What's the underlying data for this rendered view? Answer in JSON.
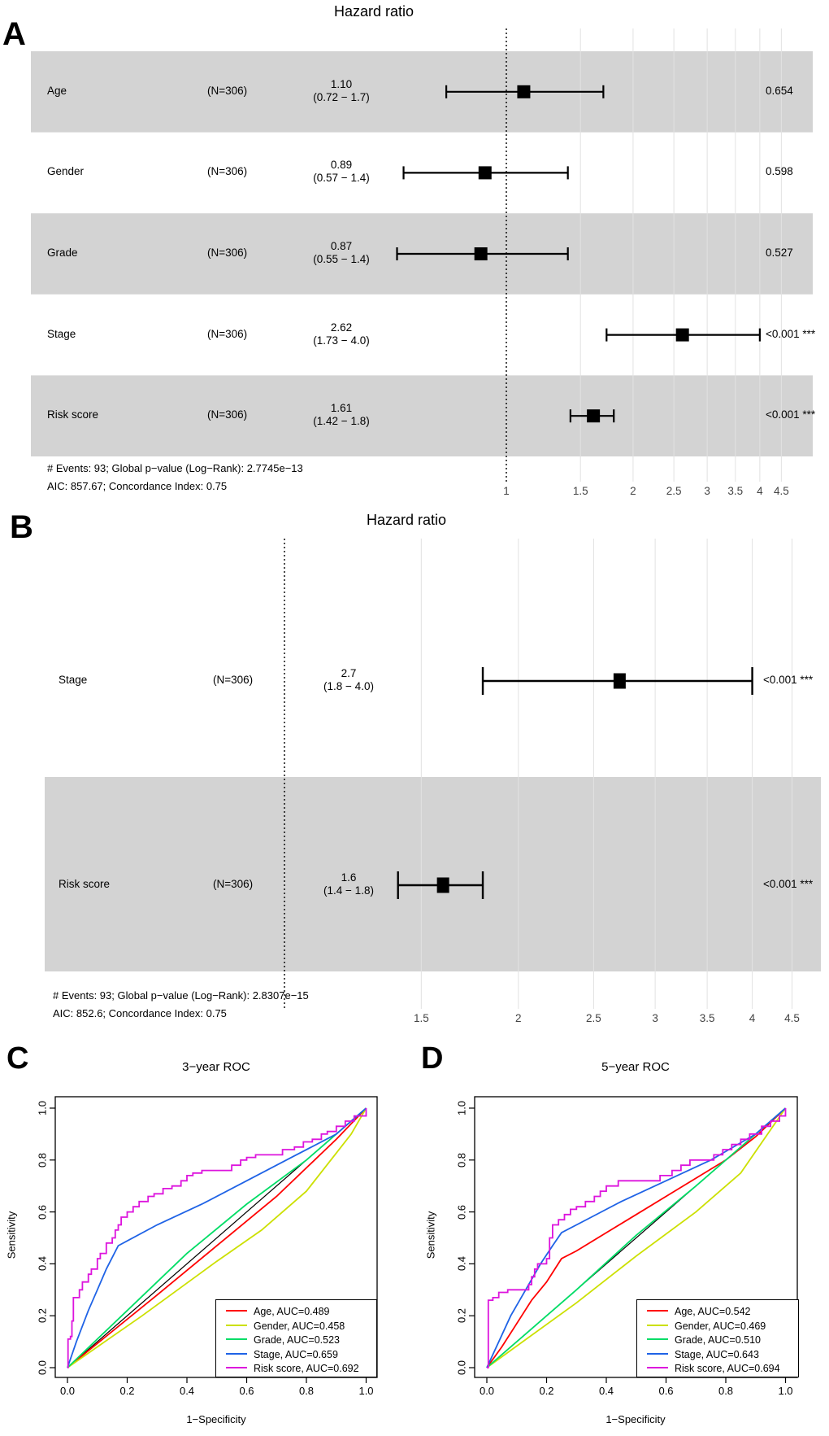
{
  "colors": {
    "band": "#D3D3D3",
    "grid": "#E2E2E2",
    "marker": "#000000",
    "reference_line": "#000000",
    "age": "#FF0000",
    "gender": "#CCE000",
    "grade": "#00DD66",
    "stage": "#1F63E6",
    "risk_score": "#DD14DD"
  },
  "chart_data": [
    {
      "id": "forest-a",
      "type": "forest",
      "panel_label": "A",
      "title": "Hazard ratio",
      "rows": [
        {
          "label": "Age",
          "n": "(N=306)",
          "estimate_label": "1.10",
          "ci_label": "(0.72 − 1.7)",
          "hr": 1.1,
          "lo": 0.72,
          "hi": 1.7,
          "p": "0.654",
          "shaded": true
        },
        {
          "label": "Gender",
          "n": "(N=306)",
          "estimate_label": "0.89",
          "ci_label": "(0.57 − 1.4)",
          "hr": 0.89,
          "lo": 0.57,
          "hi": 1.4,
          "p": "0.598",
          "shaded": false
        },
        {
          "label": "Grade",
          "n": "(N=306)",
          "estimate_label": "0.87",
          "ci_label": "(0.55 − 1.4)",
          "hr": 0.87,
          "lo": 0.55,
          "hi": 1.4,
          "p": "0.527",
          "shaded": true
        },
        {
          "label": "Stage",
          "n": "(N=306)",
          "estimate_label": "2.62",
          "ci_label": "(1.73 − 4.0)",
          "hr": 2.62,
          "lo": 1.73,
          "hi": 4.0,
          "p": "<0.001 ***",
          "shaded": false
        },
        {
          "label": "Risk score",
          "n": "(N=306)",
          "estimate_label": "1.61",
          "ci_label": "(1.42 − 1.8)",
          "hr": 1.61,
          "lo": 1.42,
          "hi": 1.8,
          "p": "<0.001 ***",
          "shaded": true
        }
      ],
      "footer_line1": "# Events: 93; Global p−value (Log−Rank): 2.7745e−13",
      "footer_line2": "AIC: 857.67; Concordance Index: 0.75",
      "axis": {
        "scale": "log",
        "reference": 1,
        "xlim": [
          0.55,
          4.9
        ],
        "ticks": [
          1,
          1.5,
          2,
          2.5,
          3,
          3.5,
          4,
          4.5
        ],
        "tick_labels": [
          "1",
          "1.5",
          "2",
          "2.5",
          "3",
          "3.5",
          "4",
          "4.5"
        ]
      }
    },
    {
      "id": "forest-b",
      "type": "forest",
      "panel_label": "B",
      "title": "Hazard ratio",
      "rows": [
        {
          "label": "Stage",
          "n": "(N=306)",
          "estimate_label": "2.7",
          "ci_label": "(1.8 − 4.0)",
          "hr": 2.7,
          "lo": 1.8,
          "hi": 4.0,
          "p": "<0.001 ***",
          "shaded": false
        },
        {
          "label": "Risk score",
          "n": "(N=306)",
          "estimate_label": "1.6",
          "ci_label": "(1.4 − 1.8)",
          "hr": 1.6,
          "lo": 1.4,
          "hi": 1.8,
          "p": "<0.001 ***",
          "shaded": true
        }
      ],
      "footer_line1": "# Events: 93; Global p−value (Log−Rank): 2.8307e−15",
      "footer_line2": "AIC: 852.6; Concordance Index: 0.75",
      "axis": {
        "scale": "log",
        "reference": 1,
        "xlim": [
          1.0,
          4.9
        ],
        "ticks": [
          1.5,
          2,
          2.5,
          3,
          3.5,
          4,
          4.5
        ],
        "tick_labels": [
          "1.5",
          "2",
          "2.5",
          "3",
          "3.5",
          "4",
          "4.5"
        ]
      }
    },
    {
      "id": "roc-3yr",
      "type": "line",
      "panel_label": "C",
      "title": "3−year ROC",
      "xlabel": "1−Specificity",
      "ylabel": "Sensitivity",
      "xlim": [
        0,
        1
      ],
      "ylim": [
        0,
        1
      ],
      "xtick_labels": [
        "0.0",
        "0.2",
        "0.4",
        "0.6",
        "0.8",
        "1.0"
      ],
      "ytick_labels": [
        "0.0",
        "0.2",
        "0.4",
        "0.6",
        "0.8",
        "1.0"
      ],
      "grid": false,
      "legend_position": "bottom-right",
      "reference_line": {
        "color": "#000000",
        "points": [
          [
            0,
            0
          ],
          [
            1,
            1
          ]
        ]
      },
      "series": [
        {
          "name": "Age, AUC=0.489",
          "auc": 0.489,
          "color": "#FF0000",
          "interp": "linear",
          "points": [
            [
              0,
              0
            ],
            [
              0.3,
              0.28
            ],
            [
              0.5,
              0.47
            ],
            [
              0.7,
              0.66
            ],
            [
              0.9,
              0.88
            ],
            [
              1,
              1
            ]
          ]
        },
        {
          "name": "Gender, AUC=0.458",
          "auc": 0.458,
          "color": "#CCE000",
          "interp": "linear",
          "points": [
            [
              0,
              0
            ],
            [
              0.25,
              0.2
            ],
            [
              0.5,
              0.41
            ],
            [
              0.65,
              0.53
            ],
            [
              0.8,
              0.68
            ],
            [
              0.95,
              0.9
            ],
            [
              1,
              1
            ]
          ]
        },
        {
          "name": "Grade, AUC=0.523",
          "auc": 0.523,
          "color": "#00DD66",
          "interp": "linear",
          "points": [
            [
              0,
              0
            ],
            [
              0.2,
              0.22
            ],
            [
              0.4,
              0.44
            ],
            [
              0.6,
              0.63
            ],
            [
              0.8,
              0.8
            ],
            [
              1,
              1
            ]
          ]
        },
        {
          "name": "Stage, AUC=0.659",
          "auc": 0.659,
          "color": "#1F63E6",
          "interp": "linear",
          "points": [
            [
              0,
              0
            ],
            [
              0.03,
              0.1
            ],
            [
              0.07,
              0.22
            ],
            [
              0.1,
              0.3
            ],
            [
              0.13,
              0.38
            ],
            [
              0.17,
              0.47
            ],
            [
              0.3,
              0.55
            ],
            [
              0.45,
              0.63
            ],
            [
              0.6,
              0.72
            ],
            [
              0.75,
              0.81
            ],
            [
              0.9,
              0.9
            ],
            [
              1,
              1
            ]
          ]
        },
        {
          "name": "Risk score, AUC=0.692",
          "auc": 0.692,
          "color": "#DD14DD",
          "interp": "step",
          "points": [
            [
              0,
              0
            ],
            [
              0.002,
              0.11
            ],
            [
              0.01,
              0.12
            ],
            [
              0.015,
              0.18
            ],
            [
              0.02,
              0.27
            ],
            [
              0.04,
              0.3
            ],
            [
              0.05,
              0.33
            ],
            [
              0.07,
              0.36
            ],
            [
              0.08,
              0.38
            ],
            [
              0.1,
              0.42
            ],
            [
              0.11,
              0.44
            ],
            [
              0.13,
              0.48
            ],
            [
              0.15,
              0.5
            ],
            [
              0.16,
              0.53
            ],
            [
              0.17,
              0.55
            ],
            [
              0.18,
              0.58
            ],
            [
              0.2,
              0.6
            ],
            [
              0.22,
              0.62
            ],
            [
              0.24,
              0.64
            ],
            [
              0.27,
              0.66
            ],
            [
              0.29,
              0.67
            ],
            [
              0.32,
              0.69
            ],
            [
              0.35,
              0.7
            ],
            [
              0.38,
              0.72
            ],
            [
              0.4,
              0.74
            ],
            [
              0.42,
              0.75
            ],
            [
              0.45,
              0.76
            ],
            [
              0.52,
              0.76
            ],
            [
              0.55,
              0.78
            ],
            [
              0.58,
              0.8
            ],
            [
              0.6,
              0.81
            ],
            [
              0.63,
              0.82
            ],
            [
              0.69,
              0.82
            ],
            [
              0.72,
              0.84
            ],
            [
              0.76,
              0.85
            ],
            [
              0.79,
              0.87
            ],
            [
              0.82,
              0.88
            ],
            [
              0.85,
              0.9
            ],
            [
              0.87,
              0.91
            ],
            [
              0.9,
              0.93
            ],
            [
              0.93,
              0.95
            ],
            [
              0.96,
              0.97
            ],
            [
              1,
              1
            ]
          ]
        }
      ]
    },
    {
      "id": "roc-5yr",
      "type": "line",
      "panel_label": "D",
      "title": "5−year ROC",
      "xlabel": "1−Specificity",
      "ylabel": "Sensitivity",
      "xlim": [
        0,
        1
      ],
      "ylim": [
        0,
        1
      ],
      "xtick_labels": [
        "0.0",
        "0.2",
        "0.4",
        "0.6",
        "0.8",
        "1.0"
      ],
      "ytick_labels": [
        "0.0",
        "0.2",
        "0.4",
        "0.6",
        "0.8",
        "1.0"
      ],
      "grid": false,
      "legend_position": "bottom-right",
      "reference_line": {
        "color": "#000000",
        "points": [
          [
            0,
            0
          ],
          [
            1,
            1
          ]
        ]
      },
      "series": [
        {
          "name": "Age, AUC=0.542",
          "auc": 0.542,
          "color": "#FF0000",
          "interp": "linear",
          "points": [
            [
              0,
              0
            ],
            [
              0.05,
              0.08
            ],
            [
              0.1,
              0.17
            ],
            [
              0.15,
              0.26
            ],
            [
              0.2,
              0.33
            ],
            [
              0.25,
              0.42
            ],
            [
              0.3,
              0.45
            ],
            [
              0.4,
              0.52
            ],
            [
              0.5,
              0.59
            ],
            [
              0.6,
              0.66
            ],
            [
              0.7,
              0.73
            ],
            [
              0.8,
              0.8
            ],
            [
              0.9,
              0.89
            ],
            [
              1,
              1
            ]
          ]
        },
        {
          "name": "Gender, AUC=0.469",
          "auc": 0.469,
          "color": "#CCE000",
          "interp": "linear",
          "points": [
            [
              0,
              0
            ],
            [
              0.3,
              0.25
            ],
            [
              0.5,
              0.43
            ],
            [
              0.7,
              0.6
            ],
            [
              0.85,
              0.75
            ],
            [
              1,
              1
            ]
          ]
        },
        {
          "name": "Grade, AUC=0.510",
          "auc": 0.51,
          "color": "#00DD66",
          "interp": "linear",
          "points": [
            [
              0,
              0
            ],
            [
              0.3,
              0.3
            ],
            [
              0.5,
              0.51
            ],
            [
              0.7,
              0.7
            ],
            [
              1,
              1
            ]
          ]
        },
        {
          "name": "Stage, AUC=0.643",
          "auc": 0.643,
          "color": "#1F63E6",
          "interp": "linear",
          "points": [
            [
              0,
              0
            ],
            [
              0.04,
              0.1
            ],
            [
              0.08,
              0.2
            ],
            [
              0.13,
              0.3
            ],
            [
              0.18,
              0.4
            ],
            [
              0.22,
              0.47
            ],
            [
              0.25,
              0.52
            ],
            [
              0.35,
              0.58
            ],
            [
              0.45,
              0.64
            ],
            [
              0.6,
              0.72
            ],
            [
              0.75,
              0.8
            ],
            [
              0.9,
              0.9
            ],
            [
              1,
              1
            ]
          ]
        },
        {
          "name": "Risk score, AUC=0.694",
          "auc": 0.694,
          "color": "#DD14DD",
          "interp": "step",
          "points": [
            [
              0,
              0
            ],
            [
              0.005,
              0.26
            ],
            [
              0.02,
              0.27
            ],
            [
              0.04,
              0.29
            ],
            [
              0.07,
              0.3
            ],
            [
              0.12,
              0.3
            ],
            [
              0.14,
              0.32
            ],
            [
              0.15,
              0.35
            ],
            [
              0.16,
              0.38
            ],
            [
              0.17,
              0.4
            ],
            [
              0.2,
              0.42
            ],
            [
              0.21,
              0.5
            ],
            [
              0.22,
              0.55
            ],
            [
              0.24,
              0.57
            ],
            [
              0.26,
              0.59
            ],
            [
              0.28,
              0.61
            ],
            [
              0.3,
              0.62
            ],
            [
              0.33,
              0.64
            ],
            [
              0.36,
              0.66
            ],
            [
              0.38,
              0.68
            ],
            [
              0.4,
              0.7
            ],
            [
              0.44,
              0.72
            ],
            [
              0.55,
              0.72
            ],
            [
              0.58,
              0.74
            ],
            [
              0.62,
              0.76
            ],
            [
              0.65,
              0.78
            ],
            [
              0.68,
              0.8
            ],
            [
              0.73,
              0.8
            ],
            [
              0.76,
              0.82
            ],
            [
              0.79,
              0.84
            ],
            [
              0.82,
              0.86
            ],
            [
              0.85,
              0.88
            ],
            [
              0.88,
              0.9
            ],
            [
              0.92,
              0.93
            ],
            [
              0.95,
              0.95
            ],
            [
              0.98,
              0.97
            ],
            [
              1,
              1
            ]
          ]
        }
      ]
    }
  ]
}
